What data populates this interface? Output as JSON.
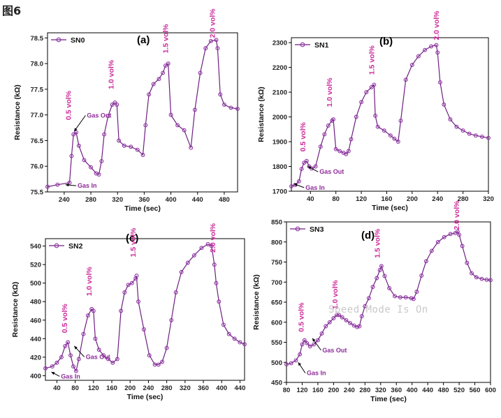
{
  "figure_title": "图6",
  "watermark": "Speed Mode Is On",
  "colors": {
    "series": "#8f2fa4",
    "annotation": "#cc2a9a"
  },
  "chart_data": [
    {
      "label": "(a)",
      "type": "line",
      "legend": "SN0",
      "xlabel": "Time (sec)",
      "ylabel": "Resistance (kΩ)",
      "xlim": [
        215,
        500
      ],
      "ylim": [
        75.5,
        78.6
      ],
      "xticks": [
        240,
        280,
        320,
        360,
        400,
        440,
        480
      ],
      "yticks": [
        75.5,
        76.0,
        76.5,
        77.0,
        77.5,
        78.0,
        78.5
      ],
      "ytick_labels": [
        "75.5",
        "76.0",
        "76.5",
        "77.0",
        "77.5",
        "78.0",
        "78.5"
      ],
      "x": [
        215,
        230,
        248,
        251,
        254,
        258,
        262,
        270,
        280,
        288,
        292,
        296,
        300,
        306,
        312,
        316,
        319,
        322,
        330,
        340,
        350,
        358,
        362,
        367,
        374,
        382,
        388,
        392,
        396,
        400,
        410,
        420,
        430,
        436,
        444,
        452,
        460,
        468,
        470,
        474,
        480,
        490,
        500
      ],
      "y": [
        75.6,
        75.64,
        75.68,
        76.2,
        76.62,
        76.66,
        76.4,
        76.12,
        75.98,
        75.86,
        75.84,
        76.1,
        76.62,
        76.98,
        77.2,
        77.24,
        77.2,
        76.5,
        76.4,
        76.38,
        76.32,
        76.22,
        76.8,
        77.4,
        77.6,
        77.7,
        77.82,
        77.96,
        78.0,
        77.0,
        76.8,
        76.7,
        76.36,
        77.1,
        77.82,
        78.3,
        78.44,
        78.46,
        78.3,
        77.4,
        77.2,
        77.14,
        77.12
      ],
      "annotations": [
        {
          "text": "0.5 vol%",
          "x": 250,
          "y": 76.9
        },
        {
          "text": "1.0 vol%",
          "x": 314,
          "y": 77.5
        },
        {
          "text": "1.5 vol%",
          "x": 396,
          "y": 78.2
        },
        {
          "text": "2.0 vol%",
          "x": 466,
          "y": 78.5
        }
      ],
      "gas_out": {
        "text": "Gas Out",
        "x": 272,
        "y": 76.95,
        "tx": 255,
        "ty": 76.68
      },
      "gas_in": {
        "text": "Gas In",
        "x": 258,
        "y": 75.58,
        "tx": 242,
        "ty": 75.64
      }
    },
    {
      "label": "(b)",
      "type": "line",
      "legend": "SN1",
      "xlabel": "Time (sec)",
      "ylabel": "Resistance (kΩ)",
      "xlim": [
        10,
        320
      ],
      "ylim": [
        1700,
        2320
      ],
      "xticks": [
        40,
        80,
        120,
        160,
        200,
        240,
        280,
        320
      ],
      "yticks": [
        1700,
        1800,
        1900,
        2000,
        2100,
        2200,
        2300
      ],
      "ytick_labels": [
        "1700",
        "1800",
        "1900",
        "2000",
        "2100",
        "2200",
        "2300"
      ],
      "x": [
        10,
        16,
        22,
        26,
        30,
        34,
        38,
        42,
        48,
        56,
        62,
        68,
        74,
        76,
        80,
        86,
        92,
        96,
        100,
        104,
        112,
        120,
        128,
        136,
        140,
        142,
        146,
        156,
        166,
        172,
        178,
        182,
        190,
        200,
        210,
        220,
        230,
        238,
        240,
        244,
        250,
        260,
        270,
        280,
        290,
        300,
        310,
        320
      ],
      "y": [
        1720,
        1725,
        1740,
        1790,
        1815,
        1822,
        1800,
        1792,
        1800,
        1880,
        1930,
        1965,
        1985,
        1990,
        1870,
        1862,
        1855,
        1850,
        1862,
        1910,
        2000,
        2060,
        2100,
        2120,
        2130,
        2005,
        1960,
        1945,
        1925,
        1912,
        1900,
        1985,
        2150,
        2210,
        2245,
        2270,
        2285,
        2290,
        2260,
        2140,
        2050,
        1990,
        1960,
        1945,
        1932,
        1925,
        1920,
        1915
      ],
      "annotations": [
        {
          "text": "0.5 vol%",
          "x": 32,
          "y": 1860
        },
        {
          "text": "1.0 vol%",
          "x": 74,
          "y": 2040
        },
        {
          "text": "1.5 vol%",
          "x": 140,
          "y": 2170
        },
        {
          "text": "2.0 vol%",
          "x": 242,
          "y": 2310
        }
      ],
      "gas_out": {
        "text": "Gas Out",
        "x": 52,
        "y": 1770,
        "tx": 36,
        "ty": 1800
      },
      "gas_in": {
        "text": "Gas In",
        "x": 30,
        "y": 1706,
        "tx": 14,
        "ty": 1730
      }
    },
    {
      "label": "(c)",
      "type": "line",
      "legend": "SN2",
      "xlabel": "Time (sec)",
      "ylabel": "Resistance (kΩ)",
      "xlim": [
        15,
        450
      ],
      "ylim": [
        395,
        548
      ],
      "xticks": [
        40,
        80,
        120,
        160,
        200,
        240,
        280,
        320,
        360,
        400,
        440
      ],
      "yticks": [
        400,
        420,
        440,
        460,
        480,
        500,
        520,
        540
      ],
      "ytick_labels": [
        "400",
        "420",
        "440",
        "460",
        "480",
        "500",
        "520",
        "540"
      ],
      "x": [
        15,
        30,
        40,
        50,
        58,
        64,
        70,
        76,
        82,
        88,
        98,
        108,
        116,
        120,
        124,
        132,
        142,
        152,
        162,
        172,
        180,
        188,
        196,
        204,
        212,
        214,
        218,
        230,
        242,
        254,
        262,
        270,
        280,
        290,
        300,
        312,
        326,
        340,
        356,
        370,
        378,
        384,
        388,
        394,
        404,
        416,
        428,
        440,
        450
      ],
      "y": [
        408,
        410,
        414,
        420,
        432,
        436,
        422,
        410,
        405,
        418,
        445,
        465,
        472,
        470,
        440,
        428,
        422,
        418,
        414,
        418,
        470,
        490,
        498,
        500,
        505,
        508,
        480,
        450,
        422,
        412,
        412,
        415,
        430,
        460,
        490,
        512,
        522,
        530,
        538,
        542,
        540,
        520,
        500,
        480,
        455,
        445,
        440,
        436,
        434
      ],
      "annotations": [
        {
          "text": "0.5 vol%",
          "x": 62,
          "y": 446
        },
        {
          "text": "1.0 vol%",
          "x": 116,
          "y": 486
        },
        {
          "text": "1.5 vol%",
          "x": 212,
          "y": 528
        },
        {
          "text": "2.0 vol%",
          "x": 386,
          "y": 533
        }
      ],
      "gas_out": {
        "text": "Gas Out",
        "x": 100,
        "y": 418,
        "tx": 78,
        "ty": 432
      },
      "gas_in": {
        "text": "Gas In",
        "x": 46,
        "y": 397,
        "tx": 28,
        "ty": 404
      }
    },
    {
      "label": "(d)",
      "type": "line",
      "legend": "SN3",
      "xlabel": "Time (sec)",
      "ylabel": "Resistance (kΩ)",
      "xlim": [
        80,
        600
      ],
      "ylim": [
        450,
        850
      ],
      "xticks": [
        80,
        120,
        160,
        200,
        240,
        280,
        320,
        360,
        400,
        440,
        480,
        520,
        560,
        600
      ],
      "yticks": [
        450,
        500,
        550,
        600,
        650,
        700,
        750,
        800,
        850
      ],
      "ytick_labels": [
        "450",
        "500",
        "550",
        "600",
        "650",
        "700",
        "750",
        "800",
        "850"
      ],
      "x": [
        80,
        92,
        104,
        114,
        120,
        126,
        132,
        140,
        150,
        160,
        170,
        180,
        190,
        200,
        208,
        214,
        222,
        232,
        242,
        252,
        260,
        266,
        272,
        280,
        290,
        300,
        310,
        318,
        322,
        330,
        342,
        356,
        370,
        384,
        398,
        404,
        412,
        424,
        436,
        450,
        466,
        482,
        498,
        510,
        516,
        520,
        528,
        540,
        552,
        564,
        578,
        590,
        600
      ],
      "y": [
        495,
        498,
        505,
        520,
        545,
        555,
        548,
        540,
        545,
        555,
        572,
        590,
        600,
        610,
        618,
        618,
        612,
        605,
        598,
        592,
        588,
        590,
        615,
        640,
        660,
        688,
        710,
        730,
        740,
        715,
        685,
        665,
        662,
        662,
        660,
        658,
        676,
        716,
        752,
        778,
        800,
        812,
        820,
        822,
        826,
        818,
        790,
        748,
        722,
        712,
        708,
        706,
        705
      ],
      "annotations": [
        {
          "text": "0.5 vol%",
          "x": 124,
          "y": 576
        },
        {
          "text": "1.0 vol%",
          "x": 210,
          "y": 632
        },
        {
          "text": "1.5 vol%",
          "x": 318,
          "y": 760
        },
        {
          "text": "2.0 vol%",
          "x": 520,
          "y": 830
        }
      ],
      "gas_out": {
        "text": "Gas Out",
        "x": 168,
        "y": 525,
        "tx": 146,
        "ty": 560
      },
      "gas_in": {
        "text": "Gas In",
        "x": 128,
        "y": 468,
        "tx": 110,
        "ty": 500
      }
    }
  ]
}
